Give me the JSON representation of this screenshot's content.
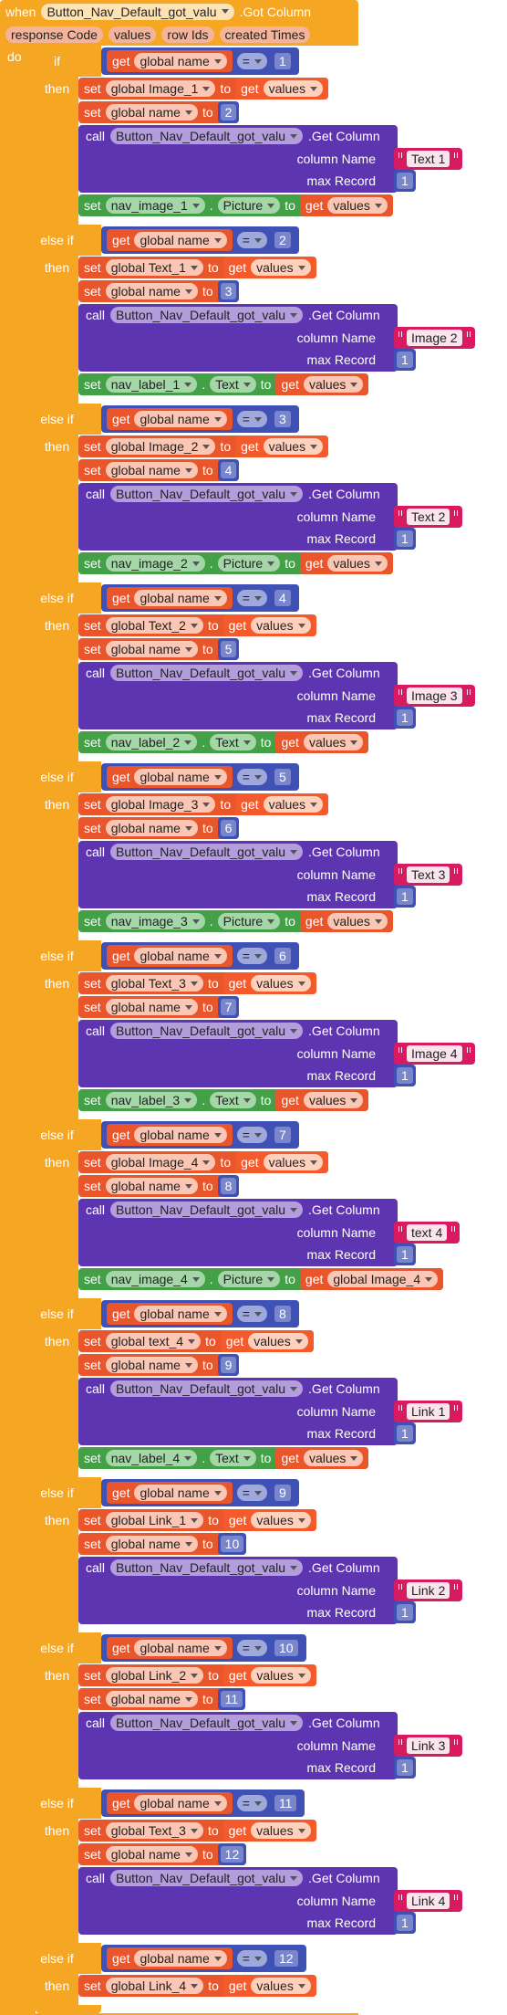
{
  "event": {
    "when": "when",
    "component": "Button_Nav_Default_got_valu",
    "event": ".Got Column",
    "params": [
      "response Code",
      "values",
      "row Ids",
      "created Times"
    ],
    "do": "do"
  },
  "branches": [
    {
      "keyword": "if",
      "condition": {
        "get": "get",
        "var": "global name",
        "op": "=",
        "value": 1
      },
      "then": "then",
      "statements": [
        {
          "set": "set",
          "var": "global Image_1",
          "to": "to",
          "get": "get",
          "value": "values"
        },
        {
          "set": "set",
          "var": "global name",
          "to": "to",
          "value": 2
        },
        {
          "call": "call",
          "component": "Button_Nav_Default_got_valu",
          "method": ".Get Column",
          "args": [
            {
              "name": "column Name",
              "value": "Text 1"
            },
            {
              "name": "max Record",
              "value": 1
            }
          ]
        },
        {
          "set": "set",
          "component": "nav_image_1",
          "dot": ".",
          "property": "Picture",
          "to": "to",
          "get": "get",
          "value": "values"
        }
      ]
    },
    {
      "keyword": "else if",
      "condition": {
        "get": "get",
        "var": "global name",
        "op": "=",
        "value": 2
      },
      "then": "then",
      "statements": [
        {
          "set": "set",
          "var": "global Text_1",
          "to": "to",
          "get": "get",
          "value": "values"
        },
        {
          "set": "set",
          "var": "global name",
          "to": "to",
          "value": 3
        },
        {
          "call": "call",
          "component": "Button_Nav_Default_got_valu",
          "method": ".Get Column",
          "args": [
            {
              "name": "column Name",
              "value": "Image 2"
            },
            {
              "name": "max Record",
              "value": 1
            }
          ]
        },
        {
          "set": "set",
          "component": "nav_label_1",
          "dot": ".",
          "property": "Text",
          "to": "to",
          "get": "get",
          "value": "values"
        }
      ]
    },
    {
      "keyword": "else if",
      "condition": {
        "get": "get",
        "var": "global name",
        "op": "=",
        "value": 3
      },
      "then": "then",
      "statements": [
        {
          "set": "set",
          "var": "global Image_2",
          "to": "to",
          "get": "get",
          "value": "values"
        },
        {
          "set": "set",
          "var": "global name",
          "to": "to",
          "value": 4
        },
        {
          "call": "call",
          "component": "Button_Nav_Default_got_valu",
          "method": ".Get Column",
          "args": [
            {
              "name": "column Name",
              "value": "Text 2"
            },
            {
              "name": "max Record",
              "value": 1
            }
          ]
        },
        {
          "set": "set",
          "component": "nav_image_2",
          "dot": ".",
          "property": "Picture",
          "to": "to",
          "get": "get",
          "value": "values"
        }
      ]
    },
    {
      "keyword": "else if",
      "condition": {
        "get": "get",
        "var": "global name",
        "op": "=",
        "value": 4
      },
      "then": "then",
      "statements": [
        {
          "set": "set",
          "var": "global Text_2",
          "to": "to",
          "get": "get",
          "value": "values"
        },
        {
          "set": "set",
          "var": "global name",
          "to": "to",
          "value": 5
        },
        {
          "call": "call",
          "component": "Button_Nav_Default_got_valu",
          "method": ".Get Column",
          "args": [
            {
              "name": "column Name",
              "value": "Image 3"
            },
            {
              "name": "max Record",
              "value": 1
            }
          ]
        },
        {
          "set": "set",
          "component": "nav_label_2",
          "dot": ".",
          "property": "Text",
          "to": "to",
          "get": "get",
          "value": "values"
        }
      ]
    },
    {
      "keyword": "else if",
      "condition": {
        "get": "get",
        "var": "global name",
        "op": "=",
        "value": 5
      },
      "then": "then",
      "statements": [
        {
          "set": "set",
          "var": "global Image_3",
          "to": "to",
          "get": "get",
          "value": "values"
        },
        {
          "set": "set",
          "var": "global name",
          "to": "to",
          "value": 6
        },
        {
          "call": "call",
          "component": "Button_Nav_Default_got_valu",
          "method": ".Get Column",
          "args": [
            {
              "name": "column Name",
              "value": "Text 3"
            },
            {
              "name": "max Record",
              "value": 1
            }
          ]
        },
        {
          "set": "set",
          "component": "nav_image_3",
          "dot": ".",
          "property": "Picture",
          "to": "to",
          "get": "get",
          "value": "values"
        }
      ]
    },
    {
      "keyword": "else if",
      "condition": {
        "get": "get",
        "var": "global name",
        "op": "=",
        "value": 6
      },
      "then": "then",
      "statements": [
        {
          "set": "set",
          "var": "global Text_3",
          "to": "to",
          "get": "get",
          "value": "values"
        },
        {
          "set": "set",
          "var": "global name",
          "to": "to",
          "value": 7
        },
        {
          "call": "call",
          "component": "Button_Nav_Default_got_valu",
          "method": ".Get Column",
          "args": [
            {
              "name": "column Name",
              "value": "Image 4"
            },
            {
              "name": "max Record",
              "value": 1
            }
          ]
        },
        {
          "set": "set",
          "component": "nav_label_3",
          "dot": ".",
          "property": "Text",
          "to": "to",
          "get": "get",
          "value": "values"
        }
      ]
    },
    {
      "keyword": "else if",
      "condition": {
        "get": "get",
        "var": "global name",
        "op": "=",
        "value": 7
      },
      "then": "then",
      "statements": [
        {
          "set": "set",
          "var": "global Image_4",
          "to": "to",
          "get": "get",
          "value": "values"
        },
        {
          "set": "set",
          "var": "global name",
          "to": "to",
          "value": 8
        },
        {
          "call": "call",
          "component": "Button_Nav_Default_got_valu",
          "method": ".Get Column",
          "args": [
            {
              "name": "column Name",
              "value": "text 4"
            },
            {
              "name": "max Record",
              "value": 1
            }
          ]
        },
        {
          "set": "set",
          "component": "nav_image_4",
          "dot": ".",
          "property": "Picture",
          "to": "to",
          "get": "get",
          "value": "global Image_4"
        }
      ]
    },
    {
      "keyword": "else if",
      "condition": {
        "get": "get",
        "var": "global name",
        "op": "=",
        "value": 8
      },
      "then": "then",
      "statements": [
        {
          "set": "set",
          "var": "global text_4",
          "to": "to",
          "get": "get",
          "value": "values"
        },
        {
          "set": "set",
          "var": "global name",
          "to": "to",
          "value": 9
        },
        {
          "call": "call",
          "component": "Button_Nav_Default_got_valu",
          "method": ".Get Column",
          "args": [
            {
              "name": "column Name",
              "value": "Link 1"
            },
            {
              "name": "max Record",
              "value": 1
            }
          ]
        },
        {
          "set": "set",
          "component": "nav_label_4",
          "dot": ".",
          "property": "Text",
          "to": "to",
          "get": "get",
          "value": "values"
        }
      ]
    },
    {
      "keyword": "else if",
      "condition": {
        "get": "get",
        "var": "global name",
        "op": "=",
        "value": 9
      },
      "then": "then",
      "statements": [
        {
          "set": "set",
          "var": "global Link_1",
          "to": "to",
          "get": "get",
          "value": "values"
        },
        {
          "set": "set",
          "var": "global name",
          "to": "to",
          "value": 10
        },
        {
          "call": "call",
          "component": "Button_Nav_Default_got_valu",
          "method": ".Get Column",
          "args": [
            {
              "name": "column Name",
              "value": "Link 2"
            },
            {
              "name": "max Record",
              "value": 1
            }
          ]
        }
      ]
    },
    {
      "keyword": "else if",
      "condition": {
        "get": "get",
        "var": "global name",
        "op": "=",
        "value": 10
      },
      "then": "then",
      "statements": [
        {
          "set": "set",
          "var": "global Link_2",
          "to": "to",
          "get": "get",
          "value": "values"
        },
        {
          "set": "set",
          "var": "global name",
          "to": "to",
          "value": 11
        },
        {
          "call": "call",
          "component": "Button_Nav_Default_got_valu",
          "method": ".Get Column",
          "args": [
            {
              "name": "column Name",
              "value": "Link 3"
            },
            {
              "name": "max Record",
              "value": 1
            }
          ]
        }
      ]
    },
    {
      "keyword": "else if",
      "condition": {
        "get": "get",
        "var": "global name",
        "op": "=",
        "value": 11
      },
      "then": "then",
      "statements": [
        {
          "set": "set",
          "var": "global Text_3",
          "to": "to",
          "get": "get",
          "value": "values"
        },
        {
          "set": "set",
          "var": "global name",
          "to": "to",
          "value": 12
        },
        {
          "call": "call",
          "component": "Button_Nav_Default_got_valu",
          "method": ".Get Column",
          "args": [
            {
              "name": "column Name",
              "value": "Link 4"
            },
            {
              "name": "max Record",
              "value": 1
            }
          ]
        }
      ]
    },
    {
      "keyword": "else if",
      "condition": {
        "get": "get",
        "var": "global name",
        "op": "=",
        "value": 12
      },
      "then": "then",
      "statements": [
        {
          "set": "set",
          "var": "global Link_4",
          "to": "to",
          "get": "get",
          "value": "values"
        }
      ]
    }
  ]
}
